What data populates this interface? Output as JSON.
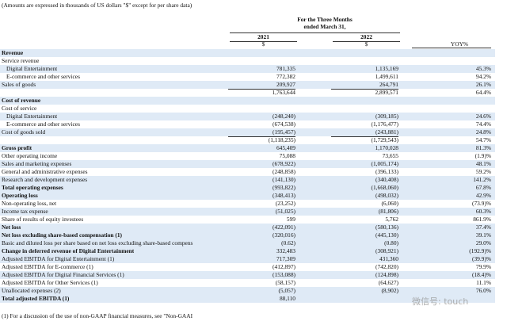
{
  "header": {
    "note": "(Amounts are expressed in thousands of US dollars \"$\" except for per share data)",
    "period_line1": "For the Three Months",
    "period_line2": "ended March 31,",
    "columns": [
      "2021",
      "2022"
    ],
    "currency": [
      "$",
      "$"
    ],
    "yoy": "YOY%"
  },
  "table": {
    "rows": [
      {
        "label": "Revenue",
        "bold": true
      },
      {
        "label": "Service revenue"
      },
      {
        "label": "Digital Entertainment",
        "indent": true,
        "cells": [
          "781,335",
          "1,135,169",
          "45.3%"
        ]
      },
      {
        "label": "E-commerce and other services",
        "indent": true,
        "cells": [
          "772,382",
          "1,499,611",
          "94.2%"
        ]
      },
      {
        "label": "Sales of goods",
        "cells": [
          "209,927",
          "264,791",
          "26.1%"
        ]
      },
      {
        "cells": [
          "1,763,644",
          "2,899,571",
          "64.4%"
        ]
      },
      {
        "label": "Cost of revenue",
        "bold": true
      },
      {
        "label": "Cost of service"
      },
      {
        "label": "Digital Entertainment",
        "indent": true,
        "cells": [
          "(248,240)",
          "(309,185)",
          "24.6%"
        ]
      },
      {
        "label": "E-commerce and other services",
        "indent": true,
        "cells": [
          "(674,538)",
          "(1,176,477)",
          "74.4%"
        ]
      },
      {
        "label": "Cost of goods sold",
        "cells": [
          "(195,457)",
          "(243,881)",
          "24.8%"
        ]
      },
      {
        "cells": [
          "(1,118,235)",
          "(1,729,543)",
          "54.7%"
        ]
      },
      {
        "label": "Gross profit",
        "bold": true,
        "cells": [
          "645,409",
          "1,170,028",
          "81.3%"
        ]
      },
      {
        "label": "Other operating income",
        "cells": [
          "75,088",
          "73,655",
          "(1.9)%"
        ]
      },
      {
        "label": "Sales and marketing expenses",
        "cells": [
          "(678,922)",
          "(1,005,174)",
          "48.1%"
        ]
      },
      {
        "label": "General and administrative expenses",
        "cells": [
          "(248,858)",
          "(396,133)",
          "59.2%"
        ]
      },
      {
        "label": "Research and development expenses",
        "cells": [
          "(141,130)",
          "(340,408)",
          "141.2%"
        ]
      },
      {
        "label": "Total operating expenses",
        "bold": true,
        "cells": [
          "(993,822)",
          "(1,668,060)",
          "67.8%"
        ]
      },
      {
        "label": "Operating loss",
        "bold": true,
        "cells": [
          "(348,413)",
          "(498,032)",
          "42.9%"
        ]
      },
      {
        "label": "Non-operating loss, net",
        "cells": [
          "(23,252)",
          "(6,060)",
          "(73.9)%"
        ]
      },
      {
        "label": "Income tax expense",
        "cells": [
          "(51,025)",
          "(81,806)",
          "60.3%"
        ]
      },
      {
        "label": "Share of results of equity investees",
        "cells": [
          "599",
          "5,762",
          "861.9%"
        ]
      },
      {
        "label": "Net loss",
        "bold": true,
        "cells": [
          "(422,091)",
          "(580,136)",
          "37.4%"
        ]
      },
      {
        "label": "Net loss excluding share-based compensation (1)",
        "bold": true,
        "cells": [
          "(320,016)",
          "(445,130)",
          "39.1%"
        ]
      },
      {
        "label": "Basic and diluted loss per share based on net loss excluding share-based compens",
        "cells": [
          "(0.62)",
          "(0.80)",
          "29.0%"
        ]
      },
      {
        "label": "Change in deferred revenue of Digital Entertainment",
        "bold": true,
        "cells": [
          "332,483",
          "(308,921)",
          "(192.9)%"
        ]
      },
      {
        "label": "Adjusted EBITDA for Digital Entertainment (1)",
        "cells": [
          "717,309",
          "431,360",
          "(39.9)%"
        ]
      },
      {
        "label": "Adjusted EBITDA for E-commerce (1)",
        "cells": [
          "(412,897)",
          "(742,820)",
          "79.9%"
        ]
      },
      {
        "label": "Adjusted EBITDA for Digital Financial Services (1)",
        "cells": [
          "(153,088)",
          "(124,898)",
          "(18.4)%"
        ]
      },
      {
        "label": "Adjusted EBITDA for Other Services (1)",
        "cells": [
          "(58,157)",
          "(64,627)",
          "11.1%"
        ]
      },
      {
        "label": "Unallocated expenses (2)",
        "cells": [
          "(5,057)",
          "(8,902)",
          "76.0%"
        ]
      },
      {
        "label": "Total adjusted EBITDA (1)",
        "bold": true,
        "cells": [
          "88,110"
        ]
      }
    ]
  },
  "footnote": "(1) For a discussion of the use of non-GAAP financial measures, see \"Non-GAAI",
  "watermark": "微信号: touch"
}
